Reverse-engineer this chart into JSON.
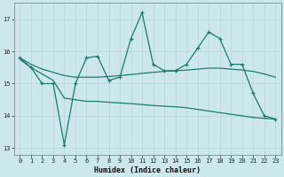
{
  "x": [
    0,
    1,
    2,
    3,
    4,
    5,
    6,
    7,
    8,
    9,
    10,
    11,
    12,
    13,
    14,
    15,
    16,
    17,
    18,
    19,
    20,
    21,
    22,
    23
  ],
  "line_zigzag": [
    15.8,
    15.5,
    15.0,
    15.0,
    13.1,
    15.0,
    15.8,
    15.85,
    15.1,
    15.2,
    16.4,
    17.2,
    15.6,
    15.4,
    15.4,
    15.6,
    16.1,
    16.6,
    16.4,
    15.6,
    15.6,
    14.7,
    14.0,
    13.9
  ],
  "line_upper": [
    15.8,
    15.6,
    15.45,
    15.35,
    15.25,
    15.2,
    15.2,
    15.2,
    15.22,
    15.25,
    15.28,
    15.32,
    15.35,
    15.38,
    15.4,
    15.42,
    15.45,
    15.48,
    15.48,
    15.45,
    15.42,
    15.38,
    15.3,
    15.2
  ],
  "line_lower": [
    15.75,
    15.5,
    15.3,
    15.1,
    14.55,
    14.5,
    14.45,
    14.45,
    14.42,
    14.4,
    14.38,
    14.35,
    14.32,
    14.3,
    14.28,
    14.25,
    14.2,
    14.15,
    14.1,
    14.05,
    14.0,
    13.95,
    13.92,
    13.9
  ],
  "color": "#1a7a6e",
  "bg_color": "#cce8ec",
  "grid_color": "#b8d4d8",
  "xlabel": "Humidex (Indice chaleur)",
  "xlim": [
    -0.5,
    23.5
  ],
  "ylim": [
    12.8,
    17.5
  ],
  "yticks": [
    13,
    14,
    15,
    16,
    17
  ],
  "xticks": [
    0,
    1,
    2,
    3,
    4,
    5,
    6,
    7,
    8,
    9,
    10,
    11,
    12,
    13,
    14,
    15,
    16,
    17,
    18,
    19,
    20,
    21,
    22,
    23
  ]
}
